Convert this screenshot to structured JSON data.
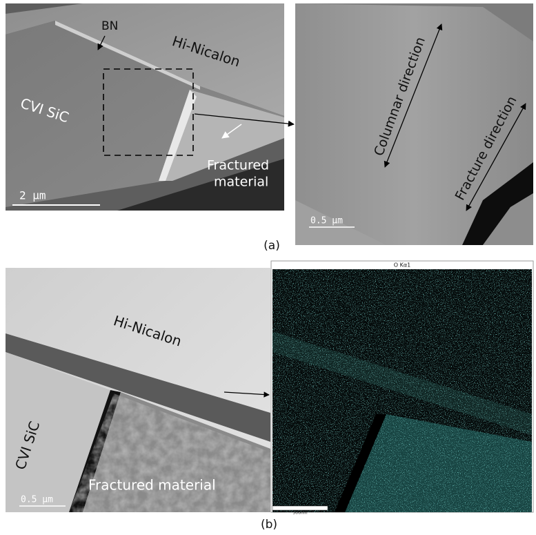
{
  "panel_a": {
    "left": {
      "bn": "BN",
      "fiber": "Hi-Nicalon",
      "matrix": "CVI SiC",
      "fractured_line1": "Fractured",
      "fractured_line2": "material",
      "scale": "2 µm"
    },
    "right": {
      "columnar": "Columnar direction",
      "fracture": "Fracture direction",
      "scale": "0.5 µm"
    },
    "caption": "(a)"
  },
  "panel_b": {
    "left": {
      "fiber": "Hi-Nicalon",
      "matrix": "CVI SiC",
      "fractured": "Fractured material",
      "scale": "0.5 µm"
    },
    "right": {
      "map_title": "O Kα1",
      "scale": "500nm"
    },
    "caption": "(b)"
  }
}
